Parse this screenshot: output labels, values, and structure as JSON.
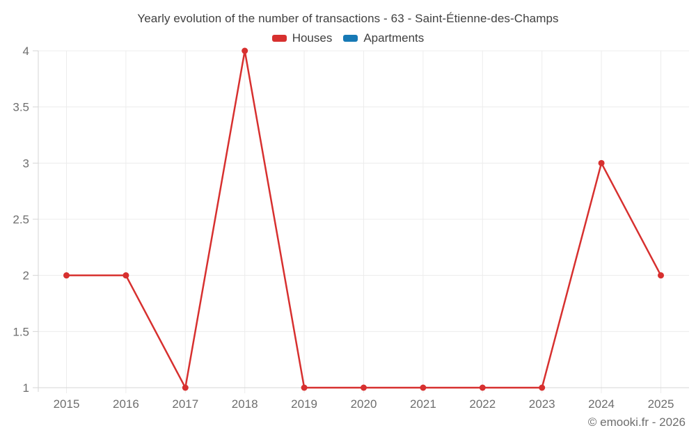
{
  "header": {
    "title": "Yearly evolution of the number of transactions - 63 - Saint-Étienne-des-Champs"
  },
  "legend": {
    "items": [
      {
        "label": "Houses",
        "color": "#d7302f"
      },
      {
        "label": "Apartments",
        "color": "#1779b5"
      }
    ]
  },
  "footer": {
    "copyright": "© emooki.fr - 2026"
  },
  "colors": {
    "houses": "#d7302f",
    "apartments": "#1779b5",
    "gridline": "#ececec",
    "axis_line": "#d6d6d6",
    "tick_label": "#6e6e6e",
    "title_text": "#3f3f3f"
  },
  "chart_data": {
    "type": "line",
    "title": "Yearly evolution of the number of transactions - 63 - Saint-Étienne-des-Champs",
    "x": [
      2015,
      2016,
      2017,
      2018,
      2019,
      2020,
      2021,
      2022,
      2023,
      2024,
      2025
    ],
    "series": [
      {
        "name": "Houses",
        "color": "#d7302f",
        "values": [
          2,
          2,
          1,
          4,
          1,
          1,
          1,
          1,
          1,
          3,
          2
        ]
      },
      {
        "name": "Apartments",
        "color": "#1779b5",
        "values": []
      }
    ],
    "xlabel": "",
    "ylabel": "",
    "ylim": [
      1,
      4
    ],
    "yticks": [
      1,
      1.5,
      2,
      2.5,
      3,
      3.5,
      4
    ],
    "grid": true,
    "legend_position": "top",
    "marker": "circle"
  }
}
